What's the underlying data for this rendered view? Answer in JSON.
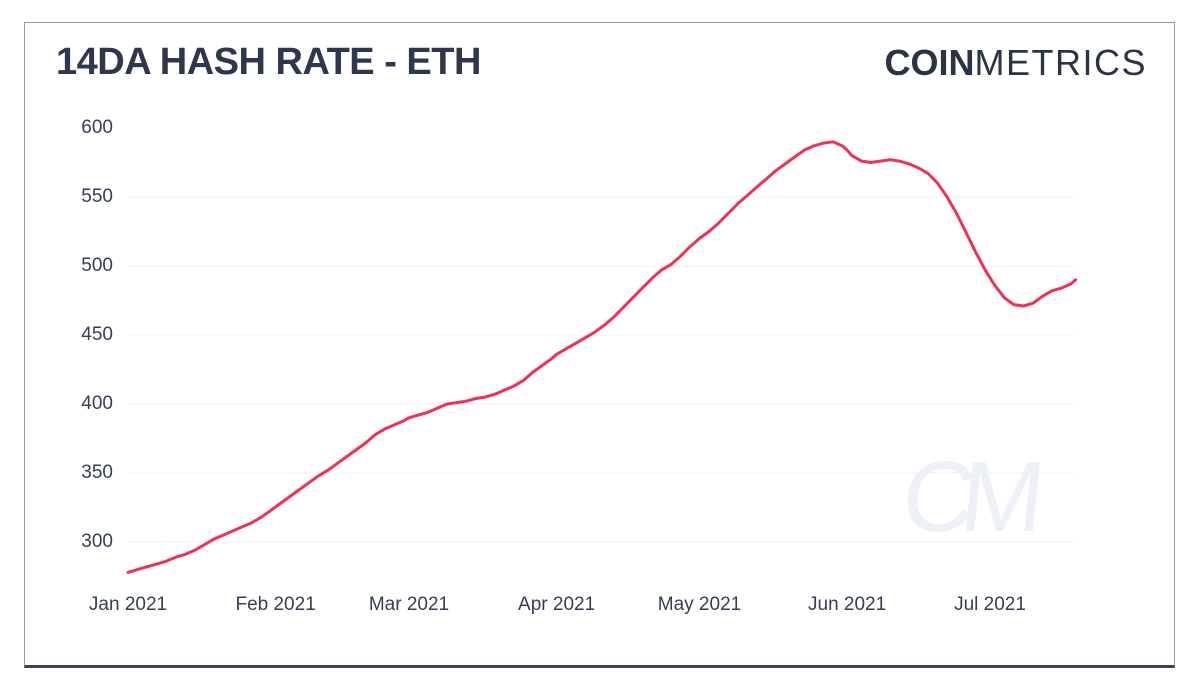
{
  "card": {
    "title": "14DA HASH RATE - ETH",
    "logo": {
      "bold": "COIN",
      "light": "METRICS"
    },
    "watermark": "CM"
  },
  "chart_data": {
    "type": "line",
    "title": "14DA HASH RATE - ETH",
    "xlabel": "",
    "ylabel": "",
    "legend": "none",
    "grid": "horizontal-only",
    "line_color": "#ec3357",
    "gridline_color": "#f2f2f5",
    "tick_color": "#363e54",
    "ylim": [
      272,
      612
    ],
    "y_ticks": [
      {
        "value": 600,
        "label": "600",
        "gridline": false
      },
      {
        "value": 550,
        "label": "550",
        "gridline": true
      },
      {
        "value": 500,
        "label": "500",
        "gridline": true
      },
      {
        "value": 450,
        "label": "450",
        "gridline": true
      },
      {
        "value": 400,
        "label": "400",
        "gridline": true
      },
      {
        "value": 350,
        "label": "350",
        "gridline": true
      },
      {
        "value": 300,
        "label": "300",
        "gridline": true
      }
    ],
    "x_ticks": [
      {
        "date": "2021-01-01",
        "label": "Jan 2021"
      },
      {
        "date": "2021-02-01",
        "label": "Feb 2021"
      },
      {
        "date": "2021-03-01",
        "label": "Mar 2021"
      },
      {
        "date": "2021-04-01",
        "label": "Apr 2021"
      },
      {
        "date": "2021-05-01",
        "label": "May 2021"
      },
      {
        "date": "2021-06-01",
        "label": "Jun 2021"
      },
      {
        "date": "2021-07-01",
        "label": "Jul 2021"
      }
    ],
    "points": [
      [
        "2021-01-01",
        278
      ],
      [
        "2021-01-03",
        280
      ],
      [
        "2021-01-05",
        282
      ],
      [
        "2021-01-07",
        284
      ],
      [
        "2021-01-09",
        286
      ],
      [
        "2021-01-11",
        289
      ],
      [
        "2021-01-13",
        291
      ],
      [
        "2021-01-15",
        294
      ],
      [
        "2021-01-17",
        298
      ],
      [
        "2021-01-19",
        302
      ],
      [
        "2021-01-21",
        305
      ],
      [
        "2021-01-23",
        308
      ],
      [
        "2021-01-25",
        311
      ],
      [
        "2021-01-27",
        314
      ],
      [
        "2021-01-29",
        318
      ],
      [
        "2021-01-31",
        323
      ],
      [
        "2021-02-02",
        328
      ],
      [
        "2021-02-04",
        333
      ],
      [
        "2021-02-06",
        338
      ],
      [
        "2021-02-08",
        343
      ],
      [
        "2021-02-10",
        348
      ],
      [
        "2021-02-12",
        352
      ],
      [
        "2021-02-14",
        357
      ],
      [
        "2021-02-16",
        362
      ],
      [
        "2021-02-18",
        367
      ],
      [
        "2021-02-20",
        372
      ],
      [
        "2021-02-22",
        378
      ],
      [
        "2021-02-24",
        382
      ],
      [
        "2021-02-26",
        385
      ],
      [
        "2021-02-28",
        388
      ],
      [
        "2021-03-01",
        390
      ],
      [
        "2021-03-03",
        392
      ],
      [
        "2021-03-05",
        394
      ],
      [
        "2021-03-07",
        397
      ],
      [
        "2021-03-09",
        400
      ],
      [
        "2021-03-11",
        401
      ],
      [
        "2021-03-13",
        402
      ],
      [
        "2021-03-15",
        404
      ],
      [
        "2021-03-17",
        405
      ],
      [
        "2021-03-19",
        407
      ],
      [
        "2021-03-21",
        410
      ],
      [
        "2021-03-23",
        413
      ],
      [
        "2021-03-25",
        417
      ],
      [
        "2021-03-27",
        423
      ],
      [
        "2021-03-29",
        428
      ],
      [
        "2021-03-31",
        433
      ],
      [
        "2021-04-01",
        436
      ],
      [
        "2021-04-03",
        440
      ],
      [
        "2021-04-05",
        444
      ],
      [
        "2021-04-07",
        448
      ],
      [
        "2021-04-09",
        452
      ],
      [
        "2021-04-11",
        457
      ],
      [
        "2021-04-13",
        463
      ],
      [
        "2021-04-15",
        470
      ],
      [
        "2021-04-17",
        477
      ],
      [
        "2021-04-19",
        484
      ],
      [
        "2021-04-21",
        491
      ],
      [
        "2021-04-23",
        497
      ],
      [
        "2021-04-25",
        501
      ],
      [
        "2021-04-27",
        507
      ],
      [
        "2021-04-29",
        514
      ],
      [
        "2021-05-01",
        520
      ],
      [
        "2021-05-03",
        525
      ],
      [
        "2021-05-05",
        531
      ],
      [
        "2021-05-07",
        538
      ],
      [
        "2021-05-09",
        545
      ],
      [
        "2021-05-11",
        551
      ],
      [
        "2021-05-13",
        557
      ],
      [
        "2021-05-15",
        563
      ],
      [
        "2021-05-17",
        569
      ],
      [
        "2021-05-19",
        574
      ],
      [
        "2021-05-21",
        579
      ],
      [
        "2021-05-23",
        584
      ],
      [
        "2021-05-25",
        587
      ],
      [
        "2021-05-27",
        589
      ],
      [
        "2021-05-29",
        590
      ],
      [
        "2021-05-31",
        587
      ],
      [
        "2021-06-01",
        584
      ],
      [
        "2021-06-02",
        580
      ],
      [
        "2021-06-04",
        576
      ],
      [
        "2021-06-06",
        575
      ],
      [
        "2021-06-08",
        576
      ],
      [
        "2021-06-10",
        577
      ],
      [
        "2021-06-12",
        576
      ],
      [
        "2021-06-14",
        574
      ],
      [
        "2021-06-16",
        571
      ],
      [
        "2021-06-18",
        567
      ],
      [
        "2021-06-20",
        560
      ],
      [
        "2021-06-22",
        550
      ],
      [
        "2021-06-24",
        538
      ],
      [
        "2021-06-26",
        524
      ],
      [
        "2021-06-28",
        510
      ],
      [
        "2021-06-30",
        497
      ],
      [
        "2021-07-02",
        486
      ],
      [
        "2021-07-04",
        477
      ],
      [
        "2021-07-06",
        472
      ],
      [
        "2021-07-08",
        471
      ],
      [
        "2021-07-10",
        473
      ],
      [
        "2021-07-12",
        478
      ],
      [
        "2021-07-14",
        482
      ],
      [
        "2021-07-16",
        484
      ],
      [
        "2021-07-18",
        487
      ],
      [
        "2021-07-19",
        490
      ]
    ]
  }
}
